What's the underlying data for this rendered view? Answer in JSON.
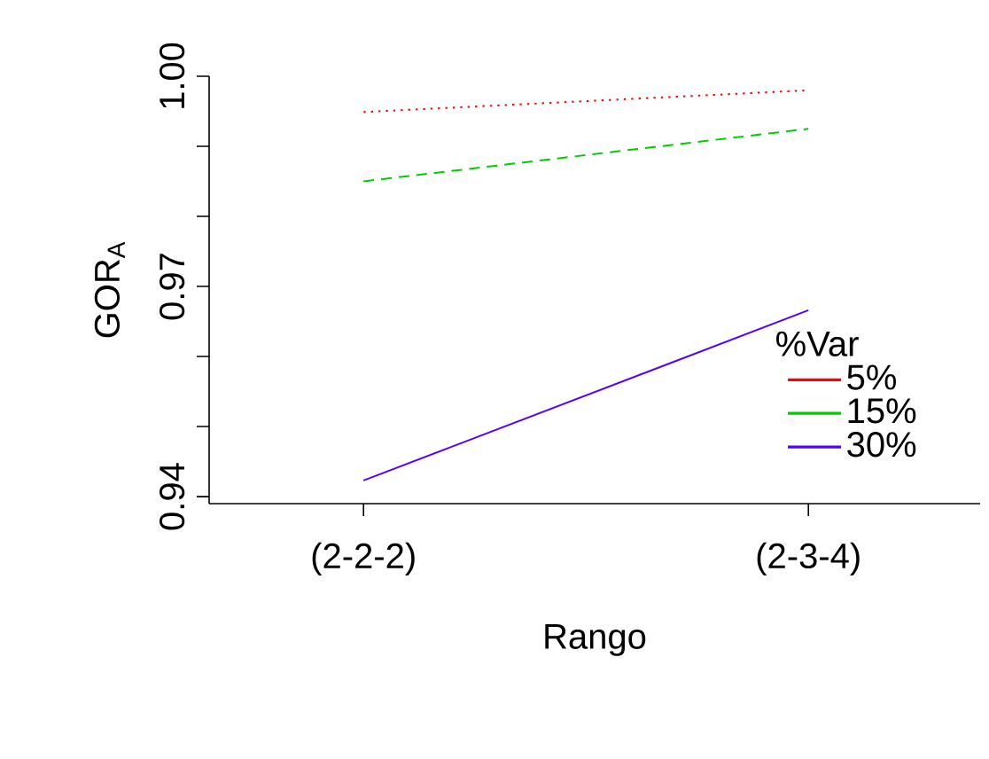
{
  "chart_data": {
    "type": "line",
    "xlabel": "Rango",
    "ylabel": "GOR$_{A}$",
    "legend_title": "%Var",
    "categories": [
      "(2-2-2)",
      "(2-3-4)"
    ],
    "series": [
      {
        "name": "5%",
        "color": "#ff0000",
        "line_style": "dotted",
        "values": [
          0.9949,
          0.998
        ]
      },
      {
        "name": "15%",
        "color": "#00cd00",
        "line_style": "dashed",
        "values": [
          0.985,
          0.9925
        ]
      },
      {
        "name": "30%",
        "color": "#5500ff",
        "line_style": "solid",
        "values": [
          0.9423,
          0.9666
        ]
      }
    ],
    "ylim": [
      0.939,
      1.0
    ],
    "yticks": [
      0.94,
      {
        "value": 0.95,
        "label": null
      },
      {
        "value": 0.96,
        "label": null
      },
      0.97,
      {
        "value": 0.98,
        "label": null
      },
      {
        "value": 0.99,
        "label": null
      },
      {
        "value": 1.0,
        "label": "1.00"
      }
    ],
    "legend": "right",
    "grid": false
  }
}
